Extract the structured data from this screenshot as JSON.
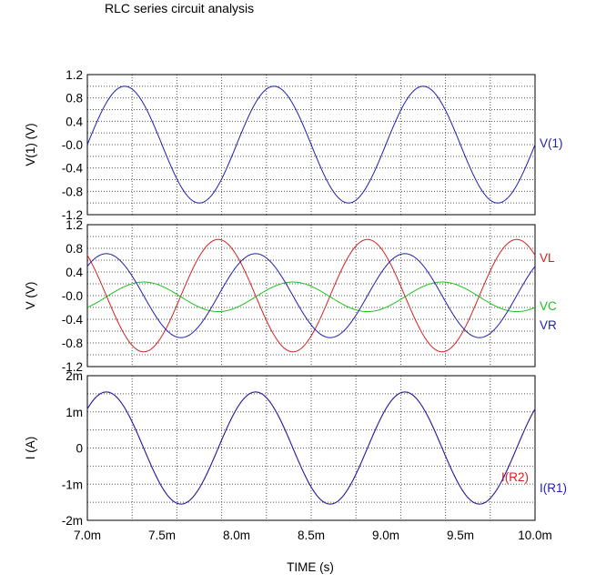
{
  "chart_data": {
    "type": "line",
    "title": "RLC series circuit analysis",
    "xlabel": "TIME  (s)",
    "xlim": [
      0.007,
      0.01
    ],
    "x_ticks": [
      0.007,
      0.0075,
      0.008,
      0.0085,
      0.009,
      0.0095,
      0.01
    ],
    "x_tick_labels": [
      "7.0m",
      "7.5m",
      "8.0m",
      "8.5m",
      "9.0m",
      "9.5m",
      "10.0m"
    ],
    "grid": true,
    "panels": [
      {
        "ylabel": "V(1)  (V)",
        "ylim": [
          -1.2,
          1.2
        ],
        "y_ticks": [
          1.2,
          0.8,
          0.4,
          0.0,
          -0.4,
          -0.8,
          -1.2
        ],
        "y_tick_labels": [
          "1.2",
          "0.8",
          "0.4",
          "-0.0",
          "-0.4",
          "-0.8",
          "-1.2"
        ],
        "series": [
          {
            "name": "V(1)",
            "color": "#1f1fb0",
            "amplitude": 1.0,
            "frequency_hz": 1000,
            "phase_deg": 0,
            "offset": 0
          }
        ]
      },
      {
        "ylabel": "V  (V)",
        "ylim": [
          -1.2,
          1.2
        ],
        "y_ticks": [
          1.2,
          0.8,
          0.4,
          0.0,
          -0.4,
          -0.8,
          -1.2
        ],
        "y_tick_labels": [
          "1.2",
          "0.8",
          "0.4",
          "-0.0",
          "-0.4",
          "-0.8",
          "-1.2"
        ],
        "series": [
          {
            "name": "VL",
            "color": "#d42020",
            "amplitude": 0.95,
            "frequency_hz": 1000,
            "phase_deg": 134.2,
            "offset": 0
          },
          {
            "name": "VC",
            "color": "#20c020",
            "amplitude": 0.25,
            "frequency_hz": 1000,
            "phase_deg": -45.8,
            "offset": -0.02
          },
          {
            "name": "VR",
            "color": "#1f1fb0",
            "amplitude": 0.71,
            "frequency_hz": 1000,
            "phase_deg": 44.2,
            "offset": 0
          }
        ]
      },
      {
        "ylabel": "I  (A)",
        "ylim": [
          -0.002,
          0.002
        ],
        "y_ticks": [
          0.002,
          0.001,
          0,
          -0.001,
          -0.002
        ],
        "y_tick_labels": [
          "2m",
          "1m",
          "0",
          "-1m",
          "-2m"
        ],
        "series": [
          {
            "name": "I(R2)",
            "color": "#d42020",
            "amplitude": 0.00155,
            "frequency_hz": 1000,
            "phase_deg": 44.2,
            "offset": 0
          },
          {
            "name": "I(R1)",
            "color": "#1f1fb0",
            "amplitude": 0.00155,
            "frequency_hz": 1000,
            "phase_deg": 44.2,
            "offset": 0
          }
        ]
      }
    ]
  }
}
